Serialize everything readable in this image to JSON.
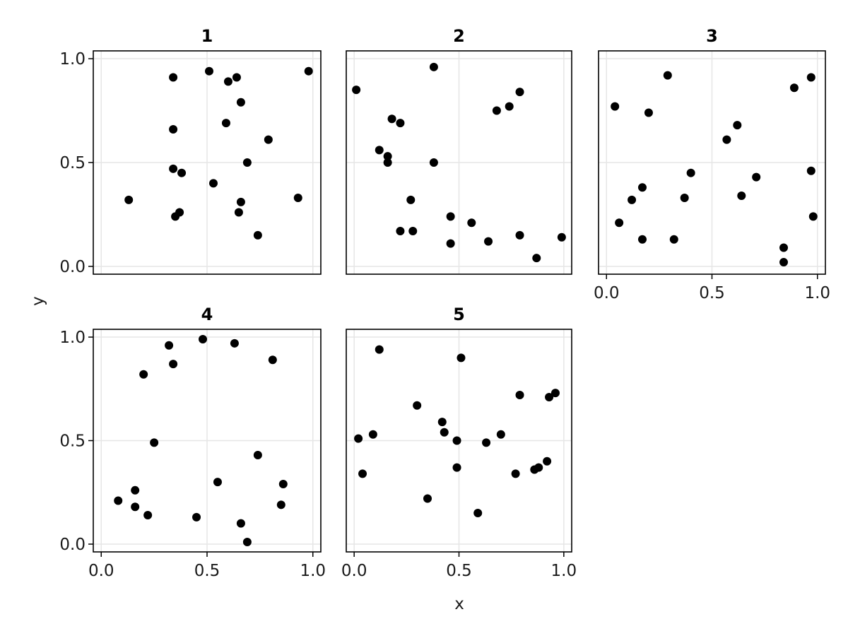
{
  "chart_data": {
    "type": "scatter",
    "xlabel": "x",
    "ylabel": "y",
    "xlim": [
      0,
      1
    ],
    "ylim": [
      0,
      1
    ],
    "grid": true,
    "xticks": [
      "0.0",
      "0.5",
      "1.0"
    ],
    "yticks": [
      "0.0",
      "0.5",
      "1.0"
    ],
    "panels": [
      {
        "title": "1",
        "points": [
          [
            0.13,
            0.32
          ],
          [
            0.34,
            0.91
          ],
          [
            0.34,
            0.66
          ],
          [
            0.34,
            0.47
          ],
          [
            0.35,
            0.24
          ],
          [
            0.37,
            0.26
          ],
          [
            0.38,
            0.45
          ],
          [
            0.51,
            0.94
          ],
          [
            0.53,
            0.4
          ],
          [
            0.59,
            0.69
          ],
          [
            0.6,
            0.89
          ],
          [
            0.64,
            0.91
          ],
          [
            0.65,
            0.26
          ],
          [
            0.66,
            0.31
          ],
          [
            0.66,
            0.79
          ],
          [
            0.69,
            0.5
          ],
          [
            0.74,
            0.15
          ],
          [
            0.79,
            0.61
          ],
          [
            0.93,
            0.33
          ],
          [
            0.98,
            0.94
          ]
        ]
      },
      {
        "title": "2",
        "points": [
          [
            0.01,
            0.85
          ],
          [
            0.12,
            0.56
          ],
          [
            0.16,
            0.53
          ],
          [
            0.16,
            0.5
          ],
          [
            0.18,
            0.71
          ],
          [
            0.22,
            0.69
          ],
          [
            0.22,
            0.17
          ],
          [
            0.27,
            0.32
          ],
          [
            0.28,
            0.17
          ],
          [
            0.38,
            0.96
          ],
          [
            0.38,
            0.5
          ],
          [
            0.46,
            0.24
          ],
          [
            0.46,
            0.11
          ],
          [
            0.56,
            0.21
          ],
          [
            0.64,
            0.12
          ],
          [
            0.68,
            0.75
          ],
          [
            0.74,
            0.77
          ],
          [
            0.79,
            0.84
          ],
          [
            0.79,
            0.15
          ],
          [
            0.87,
            0.04
          ],
          [
            0.99,
            0.14
          ]
        ]
      },
      {
        "title": "3",
        "points": [
          [
            0.04,
            0.77
          ],
          [
            0.06,
            0.21
          ],
          [
            0.12,
            0.32
          ],
          [
            0.17,
            0.38
          ],
          [
            0.17,
            0.13
          ],
          [
            0.2,
            0.74
          ],
          [
            0.29,
            0.92
          ],
          [
            0.32,
            0.13
          ],
          [
            0.37,
            0.33
          ],
          [
            0.4,
            0.45
          ],
          [
            0.57,
            0.61
          ],
          [
            0.62,
            0.68
          ],
          [
            0.64,
            0.34
          ],
          [
            0.71,
            0.43
          ],
          [
            0.84,
            0.09
          ],
          [
            0.84,
            0.02
          ],
          [
            0.89,
            0.86
          ],
          [
            0.97,
            0.91
          ],
          [
            0.97,
            0.46
          ],
          [
            0.98,
            0.24
          ]
        ]
      },
      {
        "title": "4",
        "points": [
          [
            0.08,
            0.21
          ],
          [
            0.16,
            0.26
          ],
          [
            0.16,
            0.18
          ],
          [
            0.2,
            0.82
          ],
          [
            0.22,
            0.14
          ],
          [
            0.25,
            0.49
          ],
          [
            0.32,
            0.96
          ],
          [
            0.34,
            0.87
          ],
          [
            0.45,
            0.13
          ],
          [
            0.48,
            0.99
          ],
          [
            0.55,
            0.3
          ],
          [
            0.63,
            0.97
          ],
          [
            0.66,
            0.1
          ],
          [
            0.69,
            0.01
          ],
          [
            0.74,
            0.43
          ],
          [
            0.81,
            0.89
          ],
          [
            0.85,
            0.19
          ],
          [
            0.86,
            0.29
          ]
        ]
      },
      {
        "title": "5",
        "points": [
          [
            0.02,
            0.51
          ],
          [
            0.04,
            0.34
          ],
          [
            0.09,
            0.53
          ],
          [
            0.12,
            0.94
          ],
          [
            0.3,
            0.67
          ],
          [
            0.35,
            0.22
          ],
          [
            0.42,
            0.59
          ],
          [
            0.43,
            0.54
          ],
          [
            0.49,
            0.5
          ],
          [
            0.49,
            0.37
          ],
          [
            0.51,
            0.9
          ],
          [
            0.59,
            0.15
          ],
          [
            0.63,
            0.49
          ],
          [
            0.7,
            0.53
          ],
          [
            0.77,
            0.34
          ],
          [
            0.79,
            0.72
          ],
          [
            0.86,
            0.36
          ],
          [
            0.88,
            0.37
          ],
          [
            0.92,
            0.4
          ],
          [
            0.93,
            0.71
          ],
          [
            0.96,
            0.73
          ]
        ]
      }
    ]
  }
}
